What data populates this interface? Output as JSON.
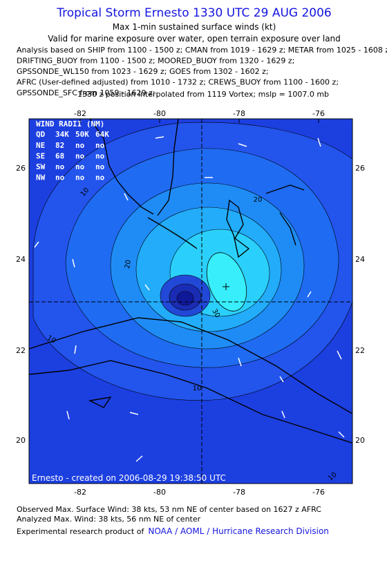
{
  "header": {
    "title": "Tropical Storm Ernesto 1330 UTC 29 AUG 2006",
    "subtitle": "Max 1-min sustained surface winds (kt)",
    "validity": "Valid for marine exposure over water, open terrain exposure over land",
    "sources": [
      "Analysis based on  SHIP from 1100 - 1500 z;  CMAN from 1019 - 1629 z;  METAR from 1025 - 1608 z;",
      "DRIFTING_BUOY from 1100 - 1500 z;  MOORED_BUOY from 1320 - 1629 z;",
      "GPSSONDE_WL150 from 1023 - 1629 z;  GOES from 1302 - 1602 z;",
      "AFRC (User-defined adjusted) from 1010 - 1732 z;  CREWS_BUOY from 1100 - 1600 z;",
      "GPSSONDE_SFC from 1059 - 1629 z;"
    ],
    "position_note": "1330 z position interpolated from 1119 Vortex; mslp = 1007.0 mb"
  },
  "map": {
    "lon_labels": [
      "-82",
      "-80",
      "-78",
      "-76"
    ],
    "lat_labels": [
      "26",
      "24",
      "22",
      "20"
    ],
    "contour_labels": [
      "10",
      "20",
      "20",
      "30",
      "10",
      "10",
      "10"
    ],
    "wind_radii": {
      "title": "WIND RADII (NM)",
      "columns": [
        "QD",
        "34K",
        "50K",
        "64K"
      ],
      "rows": [
        [
          "NE",
          "82",
          "no",
          "no"
        ],
        [
          "SE",
          "68",
          "no",
          "no"
        ],
        [
          "SW",
          "no",
          "no",
          "no"
        ],
        [
          "NW",
          "no",
          "no",
          "no"
        ]
      ]
    },
    "credit": "Ernesto - created on 2006-08-29 19:38:50 UTC"
  },
  "footer": {
    "observed": "Observed Max. Surface Wind: 38 kts, 53 nm NE of center based on 1627 z AFRC",
    "analyzed": "Analyzed Max. Wind: 38 kts, 56 nm NE of center",
    "credit_prefix": "Experimental research product of",
    "credit_link": "NOAA / AOML / Hurricane Research Division"
  }
}
